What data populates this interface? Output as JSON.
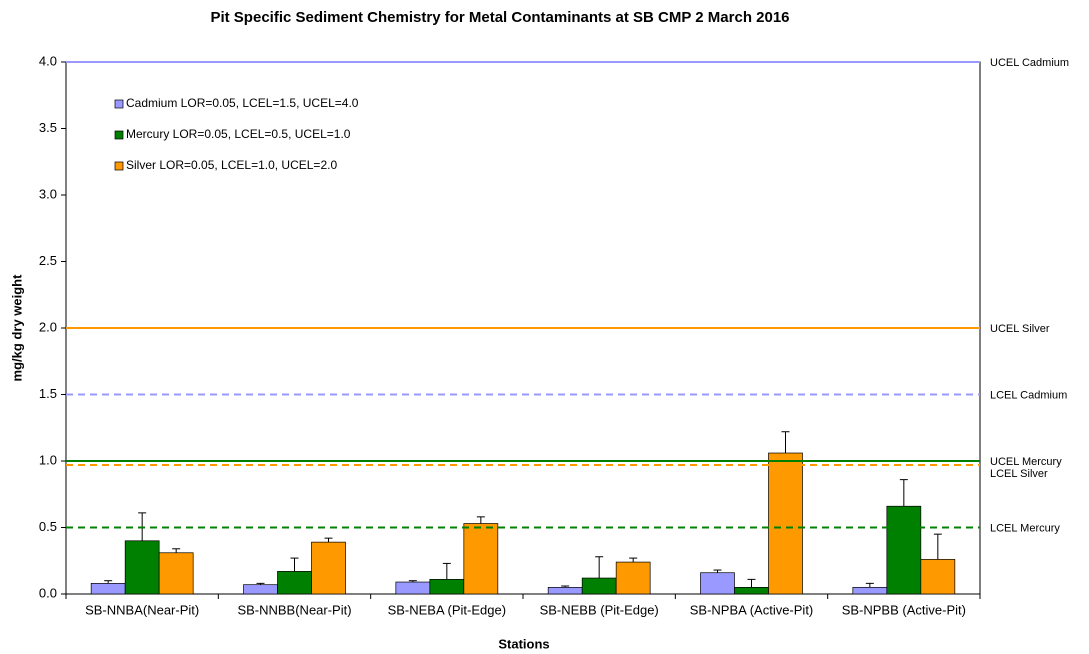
{
  "chart_data": {
    "type": "bar",
    "title": "Pit Specific Sediment Chemistry for Metal Contaminants at SB CMP 2 March 2016",
    "x_label": "Stations",
    "y_label": "mg/kg dry weight",
    "categories": [
      "SB-NNBA(Near-Pit)",
      "SB-NNBB(Near-Pit)",
      "SB-NEBA (Pit-Edge)",
      "SB-NEBB (Pit-Edge)",
      "SB-NPBA (Active-Pit)",
      "SB-NPBB (Active-Pit)"
    ],
    "series": [
      {
        "name": "Cadmium LOR=0.05, LCEL=1.5, UCEL=4.0",
        "color": "#9999ff",
        "values": [
          0.08,
          0.07,
          0.09,
          0.05,
          0.16,
          0.05
        ],
        "errors": [
          0.02,
          0.01,
          0.01,
          0.01,
          0.02,
          0.03
        ]
      },
      {
        "name": "Mercury LOR=0.05, LCEL=0.5, UCEL=1.0",
        "color": "#008000",
        "values": [
          0.4,
          0.17,
          0.11,
          0.12,
          0.05,
          0.66
        ],
        "errors": [
          0.21,
          0.1,
          0.12,
          0.16,
          0.06,
          0.2
        ]
      },
      {
        "name": "Silver LOR=0.05, LCEL=1.0, UCEL=2.0",
        "color": "#ff9900",
        "values": [
          0.31,
          0.39,
          0.53,
          0.24,
          1.06,
          0.26
        ],
        "errors": [
          0.03,
          0.03,
          0.05,
          0.03,
          0.16,
          0.19
        ]
      }
    ],
    "reference_lines": [
      {
        "label": "UCEL Cadmium",
        "value": 4.0,
        "color": "#9999ff",
        "dashed": false
      },
      {
        "label": "UCEL Silver",
        "value": 2.0,
        "color": "#ff9900",
        "dashed": false
      },
      {
        "label": "LCEL Cadmium",
        "value": 1.5,
        "color": "#9999ff",
        "dashed": true
      },
      {
        "label": "UCEL Mercury",
        "value": 1.0,
        "color": "#008000",
        "dashed": false
      },
      {
        "label": "LCEL Silver",
        "value": 0.97,
        "color": "#ff9900",
        "dashed": true
      },
      {
        "label": "LCEL Mercury",
        "value": 0.5,
        "color": "#008000",
        "dashed": true
      }
    ],
    "ylim": [
      0,
      4
    ],
    "yticks": [
      {
        "value": 0,
        "label": "0.0"
      },
      {
        "value": 0.5,
        "label": "0.5"
      },
      {
        "value": 1,
        "label": "1.0"
      },
      {
        "value": 1.5,
        "label": "1.5"
      },
      {
        "value": 2,
        "label": "2.0"
      },
      {
        "value": 2.5,
        "label": "2.5"
      },
      {
        "value": 3,
        "label": "3.0"
      },
      {
        "value": 3.5,
        "label": "3.5"
      },
      {
        "value": 4,
        "label": "4.0"
      }
    ],
    "legend": "upper left",
    "grid": false
  }
}
